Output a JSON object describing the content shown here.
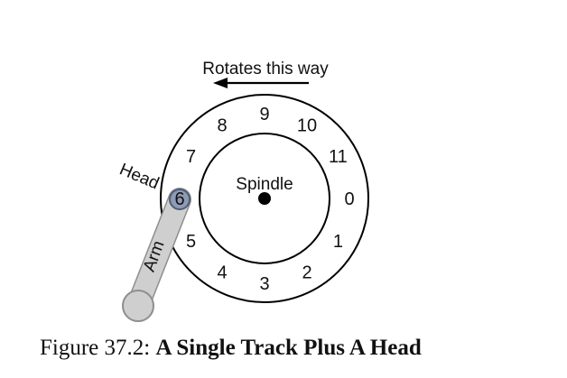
{
  "rotation": {
    "label": "Rotates this way",
    "direction": "counterclockwise"
  },
  "spindle": {
    "label": "Spindle"
  },
  "track": {
    "sectors": [
      "0",
      "1",
      "2",
      "3",
      "4",
      "5",
      "6",
      "7",
      "8",
      "9",
      "10",
      "11"
    ]
  },
  "head": {
    "label": "Head",
    "over_sector": "6"
  },
  "arm": {
    "label": "Arm"
  },
  "caption": {
    "prefix": "Figure 37.2:",
    "title": "A Single Track Plus A Head"
  },
  "colors": {
    "line": "#000000",
    "arm": "#cfcfcf",
    "arm_stroke": "#8e8e8e",
    "head": "#8e9bb3",
    "head_stroke": "#4f5d78"
  }
}
